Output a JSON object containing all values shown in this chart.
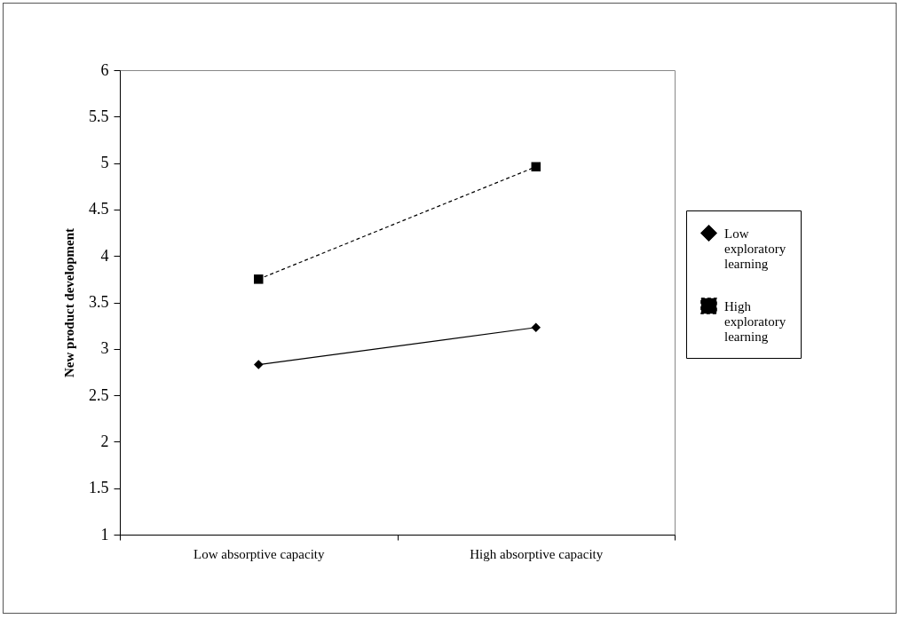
{
  "chart_data": {
    "type": "line",
    "ylabel": "New product development",
    "categories": [
      "Low absorptive capacity",
      "High absorptive capacity"
    ],
    "series": [
      {
        "name": "Low exploratory learning",
        "color": "#000000",
        "marker": "diamond",
        "line_style": "solid",
        "values": [
          2.83,
          3.23
        ]
      },
      {
        "name": "High exploratory learning",
        "color": "#000000",
        "marker": "square",
        "line_style": "dashed",
        "values": [
          3.75,
          4.96
        ]
      }
    ],
    "ylim": [
      1,
      6
    ],
    "yticks": [
      1,
      1.5,
      2,
      2.5,
      3,
      3.5,
      4,
      4.5,
      5,
      5.5,
      6
    ],
    "grid": false,
    "legend": "right"
  }
}
